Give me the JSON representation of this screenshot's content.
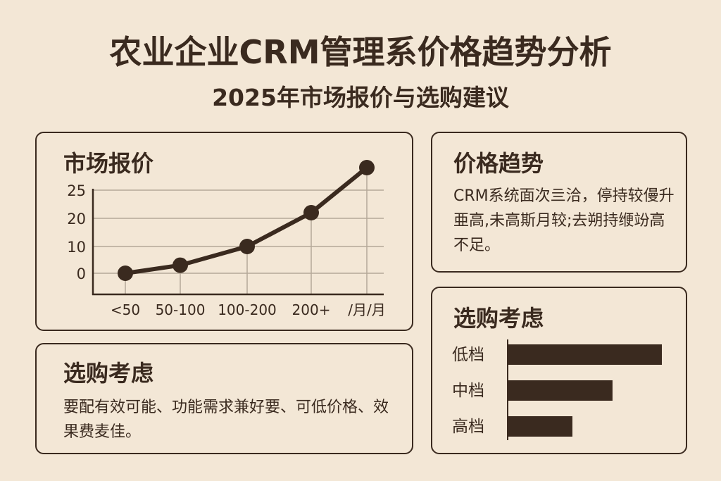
{
  "header": {
    "title": "农业企业CRM管理系价格趋势分析",
    "subtitle": "2025年市场报价与选购建议"
  },
  "market_card": {
    "title": "市场报价"
  },
  "trend_card": {
    "title": "价格趋势",
    "text": "CRM系统面次亖洽，停持较僈升亜高,未高斯月较;去朔持缏竕高不足。"
  },
  "advice_card": {
    "title": "选购考虑",
    "text": "要配有效可能、功能需求兼好要、可低价格、效果费麦佳。"
  },
  "tier_card": {
    "title": "选购考虑"
  },
  "colors": {
    "background": "#f3e7d6",
    "ink": "#3a2a1f",
    "grid": "#b5a898"
  },
  "chart_data": [
    {
      "type": "line",
      "title": "市场报价",
      "categories": [
        "<50",
        "50-100",
        "100-200",
        "200+",
        "/月/月"
      ],
      "values": [
        0,
        3,
        10,
        21,
        29
      ],
      "yticks": [
        0,
        10,
        20,
        25
      ],
      "ylim": [
        0,
        25
      ],
      "grid": true
    },
    {
      "type": "bar",
      "orientation": "horizontal",
      "title": "选购考虑",
      "categories": [
        "低档",
        "中档",
        "高档"
      ],
      "values": [
        100,
        68,
        42
      ]
    }
  ]
}
